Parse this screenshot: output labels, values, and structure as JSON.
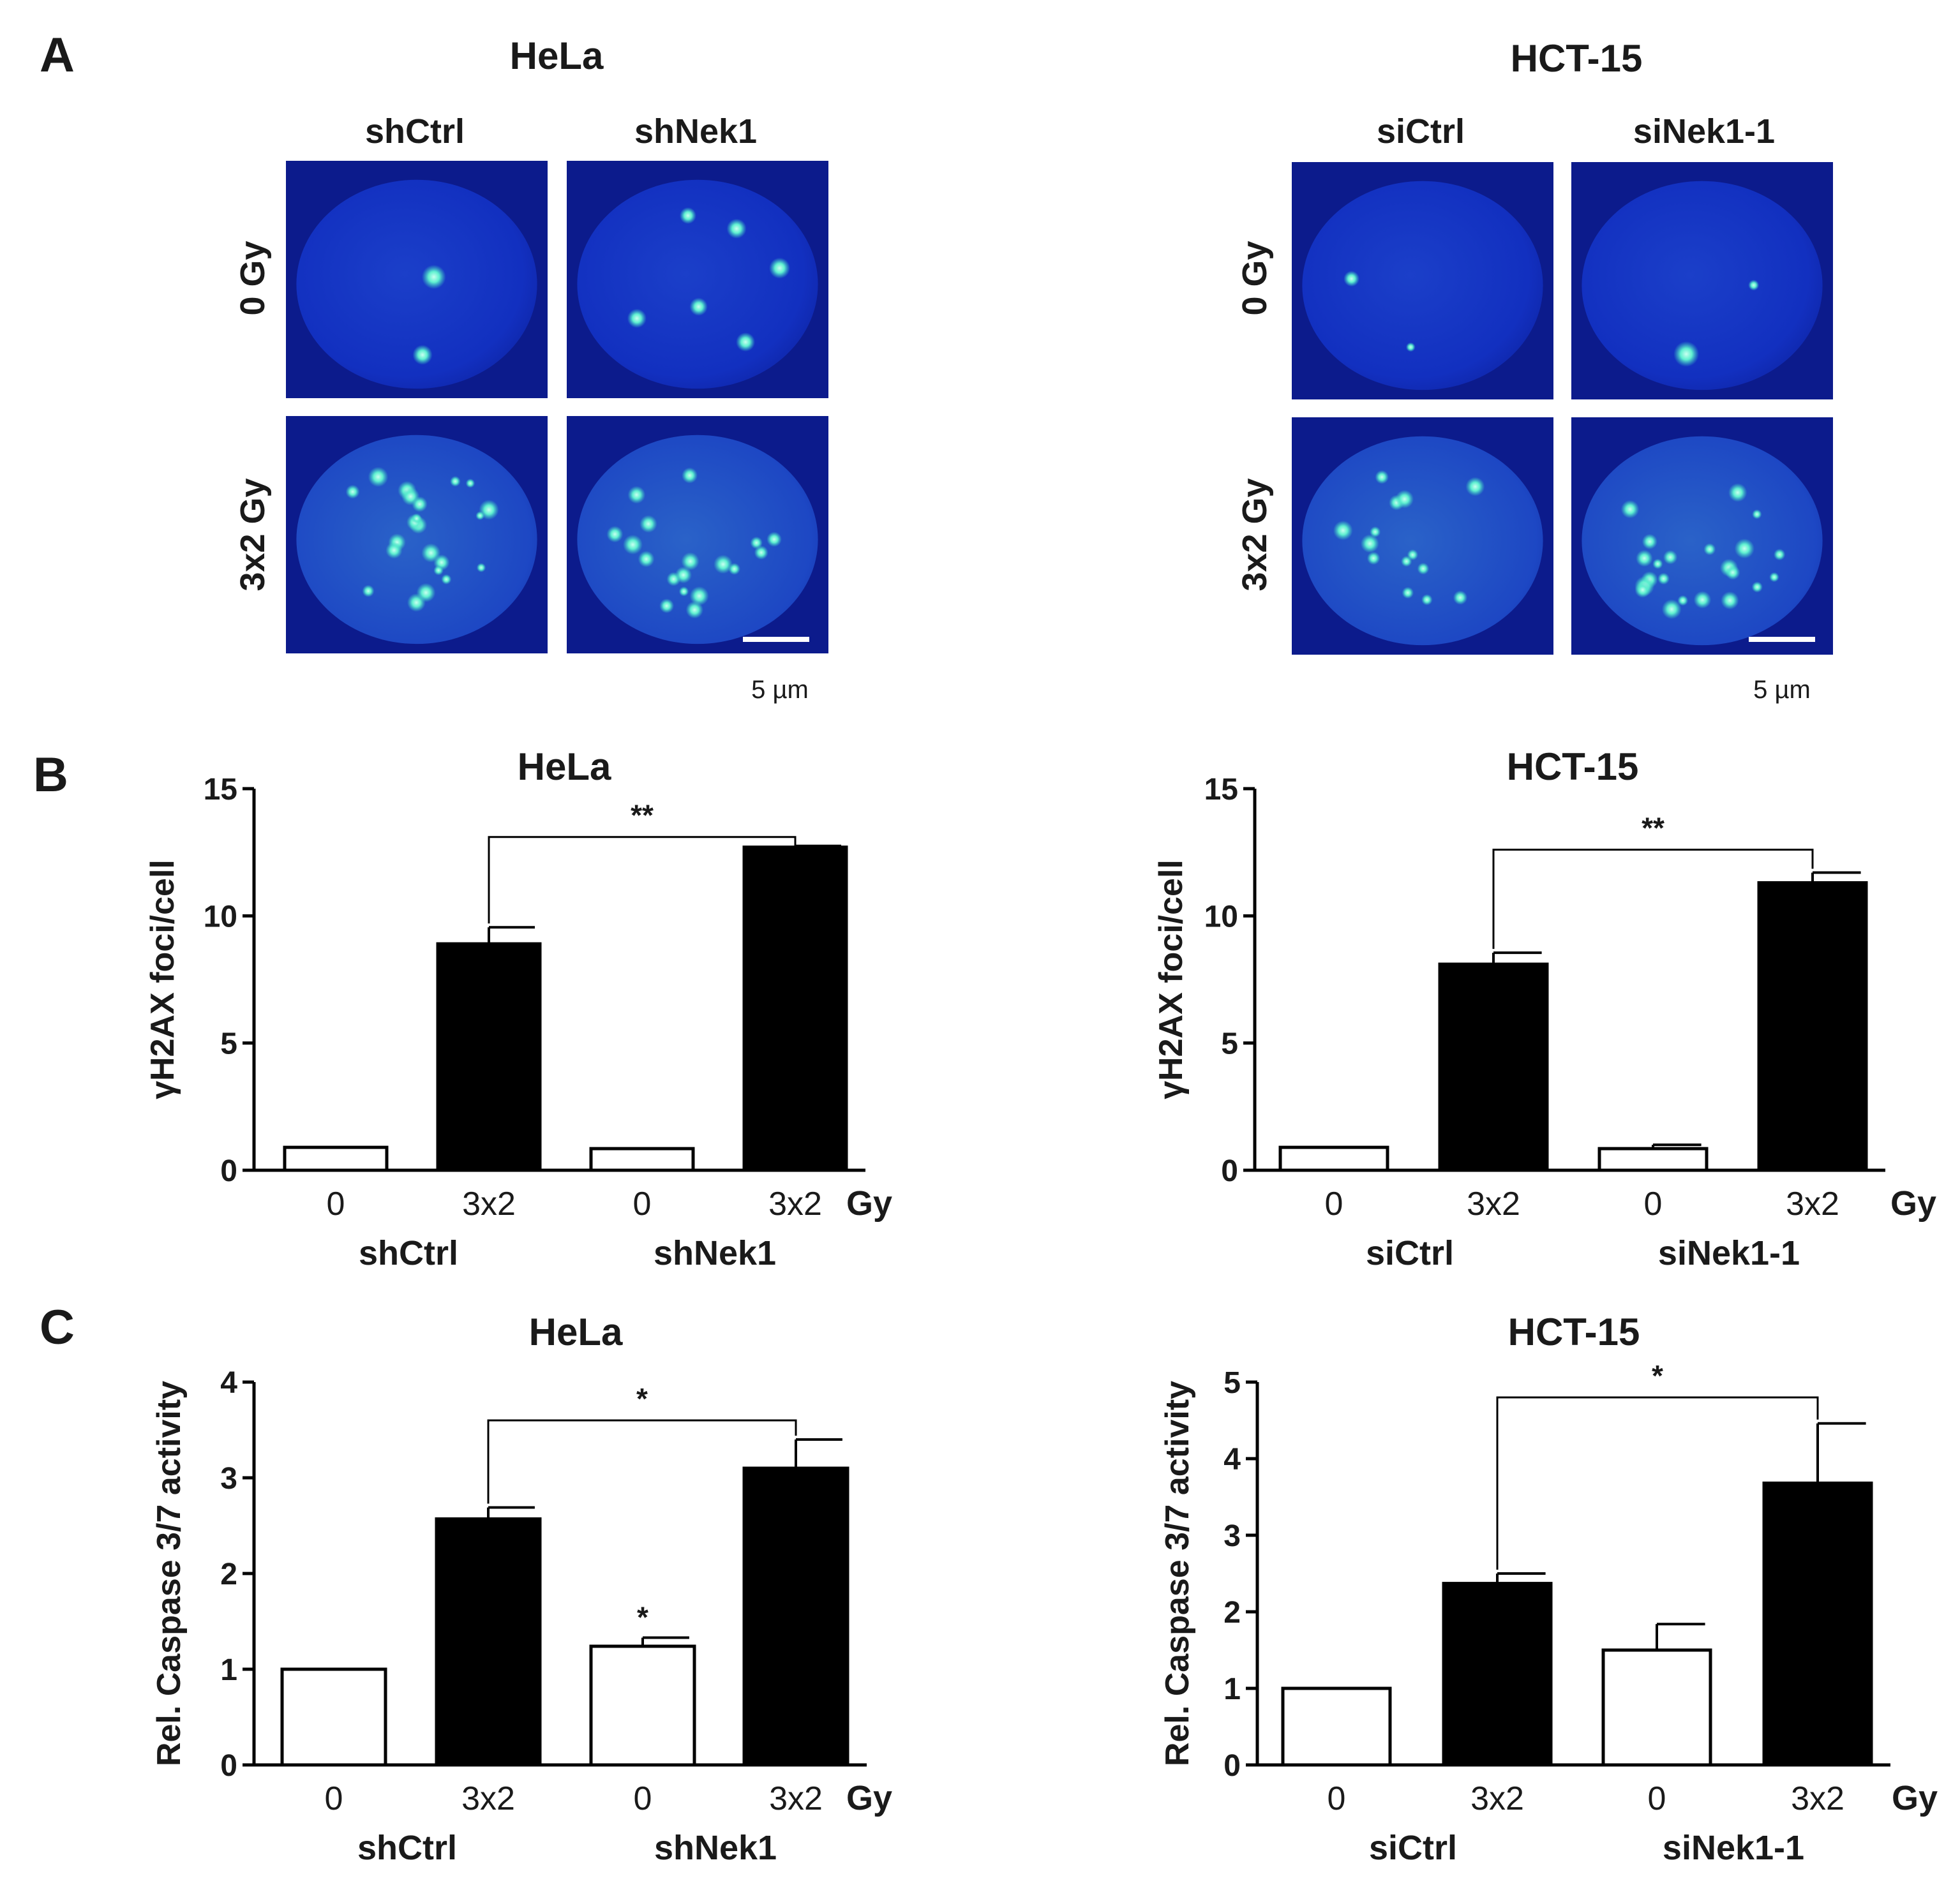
{
  "panel_letters": [
    "A",
    "B",
    "C"
  ],
  "micrographs": {
    "scale_bar_label": "5 µm",
    "blocks": [
      {
        "cell_line": "HeLa",
        "conditions": [
          "shCtrl",
          "shNek1"
        ],
        "doses": [
          "0 Gy",
          "3x2 Gy"
        ],
        "foci": [
          [
            2,
            6
          ],
          [
            22,
            18
          ]
        ]
      },
      {
        "cell_line": "HCT-15",
        "conditions": [
          "siCtrl",
          "siNek1-1"
        ],
        "doses": [
          "0 Gy",
          "3x2 Gy"
        ],
        "foci": [
          [
            2,
            2
          ],
          [
            14,
            22
          ]
        ]
      }
    ]
  },
  "chart_data": [
    {
      "type": "bar",
      "panel": "B",
      "title": "HeLa",
      "ylabel": "γH2AX foci/cell",
      "ylim": [
        0,
        15
      ],
      "yticks": [
        0,
        5,
        10,
        15
      ],
      "categories": [
        "0",
        "3x2",
        "0",
        "3x2"
      ],
      "dose_unit": "Gy",
      "groups": [
        "shCtrl",
        "shNek1"
      ],
      "values": [
        0.9,
        8.9,
        0.85,
        12.7
      ],
      "errors": [
        0,
        0.65,
        0,
        0.05
      ],
      "fills": [
        "open",
        "filled",
        "open",
        "filled"
      ],
      "bar_marks": [
        "",
        "",
        "",
        ""
      ],
      "comparison": {
        "from": 1,
        "to": 3,
        "label": "**",
        "y": 13.1
      }
    },
    {
      "type": "bar",
      "panel": "B",
      "title": "HCT-15",
      "ylabel": "γH2AX foci/cell",
      "ylim": [
        0,
        15
      ],
      "yticks": [
        0,
        5,
        10,
        15
      ],
      "categories": [
        "0",
        "3x2",
        "0",
        "3x2"
      ],
      "dose_unit": "Gy",
      "groups": [
        "siCtrl",
        "siNek1-1"
      ],
      "values": [
        0.9,
        8.1,
        0.85,
        11.3
      ],
      "errors": [
        0,
        0.45,
        0.15,
        0.4
      ],
      "fills": [
        "open",
        "filled",
        "open",
        "filled"
      ],
      "bar_marks": [
        "",
        "",
        "",
        ""
      ],
      "comparison": {
        "from": 1,
        "to": 3,
        "label": "**",
        "y": 12.6
      }
    },
    {
      "type": "bar",
      "panel": "C",
      "title": "HeLa",
      "ylabel": "Rel. Caspase 3/7 activity",
      "ylim": [
        0,
        4
      ],
      "yticks": [
        0,
        1,
        2,
        3,
        4
      ],
      "categories": [
        "0",
        "3x2",
        "0",
        "3x2"
      ],
      "dose_unit": "Gy",
      "groups": [
        "shCtrl",
        "shNek1"
      ],
      "values": [
        1.0,
        2.57,
        1.24,
        3.1
      ],
      "errors": [
        0,
        0.12,
        0.09,
        0.3
      ],
      "fills": [
        "open",
        "filled",
        "open",
        "filled"
      ],
      "bar_marks": [
        "",
        "",
        "*",
        ""
      ],
      "comparison": {
        "from": 1,
        "to": 3,
        "label": "*",
        "y": 3.6
      }
    },
    {
      "type": "bar",
      "panel": "C",
      "title": "HCT-15",
      "ylabel": "Rel. Caspase 3/7 activity",
      "ylim": [
        0,
        5
      ],
      "yticks": [
        0,
        1,
        2,
        3,
        4,
        5
      ],
      "categories": [
        "0",
        "3x2",
        "0",
        "3x2"
      ],
      "dose_unit": "Gy",
      "groups": [
        "siCtrl",
        "siNek1-1"
      ],
      "values": [
        1.0,
        2.37,
        1.5,
        3.68
      ],
      "errors": [
        0,
        0.13,
        0.34,
        0.78
      ],
      "fills": [
        "open",
        "filled",
        "open",
        "filled"
      ],
      "bar_marks": [
        "",
        "",
        "",
        ""
      ],
      "comparison": {
        "from": 1,
        "to": 3,
        "label": "*",
        "y": 4.8
      }
    }
  ]
}
